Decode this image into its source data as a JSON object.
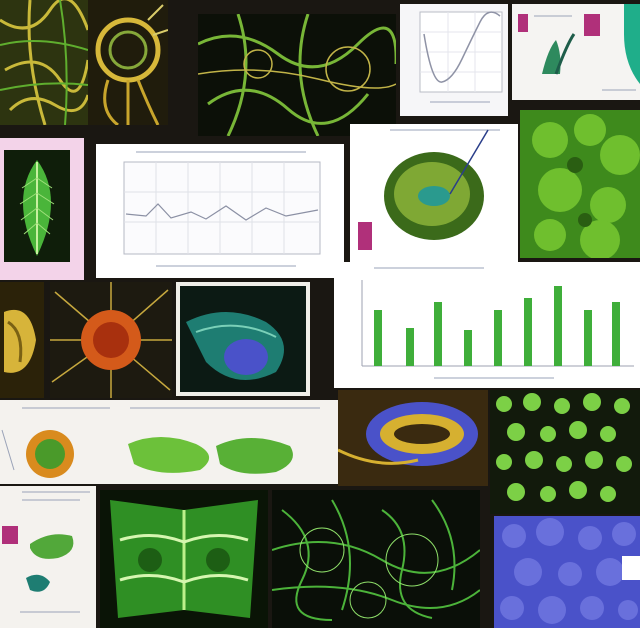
{
  "collage": {
    "theme": "green micrograph montage",
    "colors": {
      "background": "#1a1712",
      "paper": "#f4f2ee",
      "plant_green": "#3fae3a",
      "bright_green": "#6dd84a",
      "olive": "#7a8a22",
      "magenta_marker": "#b0307a",
      "teal": "#1e7d72",
      "blue_tissue": "#4a52c9",
      "orange_cell": "#d45a1a"
    },
    "tiles": [
      {
        "name": "top-left-vascular-micrograph",
        "kind": "micrograph"
      },
      {
        "name": "top-spiral-micrograph",
        "kind": "micrograph"
      },
      {
        "name": "top-center-green-network",
        "kind": "micrograph"
      },
      {
        "name": "top-right-line-plot",
        "kind": "figure"
      },
      {
        "name": "top-right-plant-diagram",
        "kind": "figure"
      },
      {
        "name": "leaf-micrograph",
        "kind": "micrograph"
      },
      {
        "name": "center-line-chart",
        "kind": "figure"
      },
      {
        "name": "cell-illustration",
        "kind": "figure"
      },
      {
        "name": "green-texture-micrograph",
        "kind": "micrograph"
      },
      {
        "name": "yellow-specimen",
        "kind": "micrograph"
      },
      {
        "name": "orange-cell-micrograph",
        "kind": "micrograph"
      },
      {
        "name": "teal-cell-micrograph",
        "kind": "micrograph"
      },
      {
        "name": "green-bar-chart",
        "kind": "figure"
      },
      {
        "name": "bottom-left-diagram-sheet",
        "kind": "figure"
      },
      {
        "name": "blue-ring-micrograph",
        "kind": "micrograph"
      },
      {
        "name": "green-droplets",
        "kind": "micrograph"
      },
      {
        "name": "bottom-left-notes-sheet",
        "kind": "figure"
      },
      {
        "name": "symmetric-green-micrograph",
        "kind": "micrograph"
      },
      {
        "name": "green-vein-micrograph",
        "kind": "micrograph"
      },
      {
        "name": "blue-tissue-micrograph",
        "kind": "micrograph"
      }
    ]
  }
}
